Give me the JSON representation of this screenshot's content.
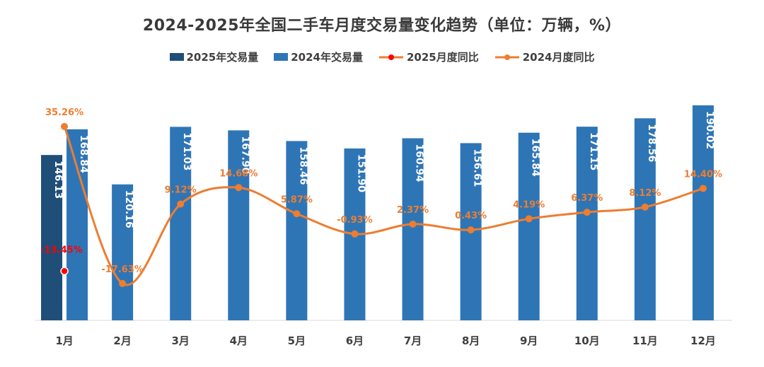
{
  "chart_data": {
    "type": "bar",
    "title": "2024-2025年全国二手车月度交易量变化趋势（单位：万辆，%）",
    "categories": [
      "1月",
      "2月",
      "3月",
      "4月",
      "5月",
      "6月",
      "7月",
      "8月",
      "9月",
      "10月",
      "11月",
      "12月"
    ],
    "series": [
      {
        "name": "2025年交易量",
        "kind": "bar",
        "color": "#1f4e79",
        "values": [
          146.13,
          null,
          null,
          null,
          null,
          null,
          null,
          null,
          null,
          null,
          null,
          null
        ],
        "labels": [
          "146.13"
        ]
      },
      {
        "name": "2024年交易量",
        "kind": "bar",
        "color": "#2e75b6",
        "values": [
          168.84,
          120.16,
          171.03,
          167.9,
          158.46,
          151.9,
          160.94,
          156.61,
          165.84,
          171.15,
          178.56,
          190.02
        ],
        "labels": [
          "168.84",
          "120.16",
          "171.03",
          "167.90",
          "158.46",
          "151.90",
          "160.94",
          "156.61",
          "165.84",
          "171.15",
          "178.56",
          "190.02"
        ]
      },
      {
        "name": "2025月度同比",
        "kind": "line",
        "color": "#ff0000",
        "values": [
          -13.45,
          null,
          null,
          null,
          null,
          null,
          null,
          null,
          null,
          null,
          null,
          null
        ],
        "labels": [
          "-13.45%"
        ]
      },
      {
        "name": "2024月度同比",
        "kind": "line",
        "color": "#ed7d31",
        "values": [
          35.26,
          -17.63,
          9.12,
          14.68,
          5.87,
          -0.93,
          2.37,
          0.43,
          4.19,
          6.37,
          8.12,
          14.4
        ],
        "labels": [
          "35.26%",
          "-17.63%",
          "9.12%",
          "14.68%",
          "5.87%",
          "-0.93%",
          "2.37%",
          "0.43%",
          "4.19%",
          "6.37%",
          "8.12%",
          "14.40%"
        ]
      }
    ],
    "ylim_bars": [
      0,
      200
    ],
    "ylim_pct": [
      -20,
      40
    ],
    "legend_position": "top-center",
    "grid": false
  },
  "legend": [
    {
      "label": "2025年交易量",
      "icon": "square",
      "color": "#1f4e79"
    },
    {
      "label": "2024年交易量",
      "icon": "square",
      "color": "#2e75b6"
    },
    {
      "label": "2025月度同比",
      "icon": "line-dot",
      "color": "#ed7d31",
      "dot": "#ff0000"
    },
    {
      "label": "2024月度同比",
      "icon": "line-dot",
      "color": "#ed7d31",
      "dot": "#ed7d31"
    }
  ]
}
